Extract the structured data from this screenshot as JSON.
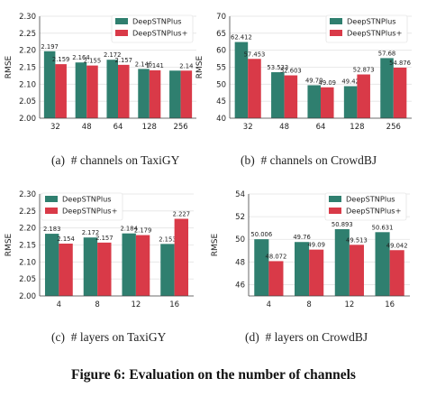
{
  "colors": {
    "plus": "#2f7f6f",
    "plus_plus": "#d93a48",
    "grid": "#e3e3e3",
    "axis": "#444444",
    "text": "#222222"
  },
  "chart_data": [
    {
      "type": "bar",
      "title": "",
      "xlabel": "",
      "ylabel": "RMSE",
      "categories": [
        "32",
        "48",
        "64",
        "128",
        "256"
      ],
      "series": [
        {
          "name": "DeepSTNPlus",
          "values": [
            2.197,
            2.164,
            2.172,
            2.145,
            2.14
          ],
          "labels": [
            "2.197",
            "2.164",
            "2.172",
            "2.145",
            ""
          ]
        },
        {
          "name": "DeepSTNPlus+",
          "values": [
            2.159,
            2.155,
            2.157,
            2.141,
            2.14
          ],
          "labels": [
            "2.159",
            "2.155",
            "2.157",
            "2.141",
            "2.14"
          ]
        }
      ],
      "ylim": [
        2.0,
        2.3
      ],
      "yticks": [
        "2.00",
        "2.05",
        "2.10",
        "2.15",
        "2.20",
        "2.25",
        "2.30"
      ],
      "legend": "top-right",
      "caption": "(a)  # channels on TaxiGY"
    },
    {
      "type": "bar",
      "title": "",
      "xlabel": "",
      "ylabel": "RMSE",
      "categories": [
        "32",
        "48",
        "64",
        "128",
        "256"
      ],
      "series": [
        {
          "name": "DeepSTNPlus",
          "values": [
            62.412,
            53.533,
            49.7,
            49.42,
            57.68
          ],
          "labels": [
            "62.412",
            "53.533",
            "49.70",
            "49.42",
            "57.68"
          ]
        },
        {
          "name": "DeepSTNPlus+",
          "values": [
            57.453,
            52.603,
            49.09,
            52.873,
            54.876
          ],
          "labels": [
            "57.453",
            "52.603",
            "49.09",
            "52.873",
            "54.876"
          ]
        }
      ],
      "ylim": [
        40,
        70
      ],
      "yticks": [
        "40",
        "45",
        "50",
        "55",
        "60",
        "65",
        "70"
      ],
      "legend": "top-right",
      "caption": "(b)  # channels on CrowdBJ"
    },
    {
      "type": "bar",
      "title": "",
      "xlabel": "",
      "ylabel": "RMSE",
      "categories": [
        "4",
        "8",
        "12",
        "16"
      ],
      "series": [
        {
          "name": "DeepSTNPlus",
          "values": [
            2.183,
            2.172,
            2.184,
            2.153
          ],
          "labels": [
            "2.183",
            "2.172",
            "2.184",
            "2.153"
          ]
        },
        {
          "name": "DeepSTNPlus+",
          "values": [
            2.154,
            2.157,
            2.179,
            2.227
          ],
          "labels": [
            "2.154",
            "2.157",
            "2.179",
            "2.227"
          ]
        }
      ],
      "ylim": [
        2.0,
        2.3
      ],
      "yticks": [
        "2.00",
        "2.05",
        "2.10",
        "2.15",
        "2.20",
        "2.25",
        "2.30"
      ],
      "legend": "top-left",
      "caption": "(c)  # layers on TaxiGY"
    },
    {
      "type": "bar",
      "title": "",
      "xlabel": "",
      "ylabel": "RMSE",
      "categories": [
        "4",
        "8",
        "12",
        "16"
      ],
      "series": [
        {
          "name": "DeepSTNPlus",
          "values": [
            50.006,
            49.76,
            50.893,
            50.631
          ],
          "labels": [
            "50.006",
            "49.76",
            "50.893",
            "50.631"
          ]
        },
        {
          "name": "DeepSTNPlus+",
          "values": [
            48.072,
            49.09,
            49.513,
            49.042
          ],
          "labels": [
            "48.072",
            "49.09",
            "49.513",
            "49.042"
          ]
        }
      ],
      "ylim": [
        45,
        54
      ],
      "yticks": [
        "46",
        "48",
        "50",
        "52",
        "54"
      ],
      "legend": "top-right",
      "caption": "(d)  # layers on CrowdBJ"
    }
  ],
  "figure_caption": "Figure 6: Evaluation on the number of channels"
}
